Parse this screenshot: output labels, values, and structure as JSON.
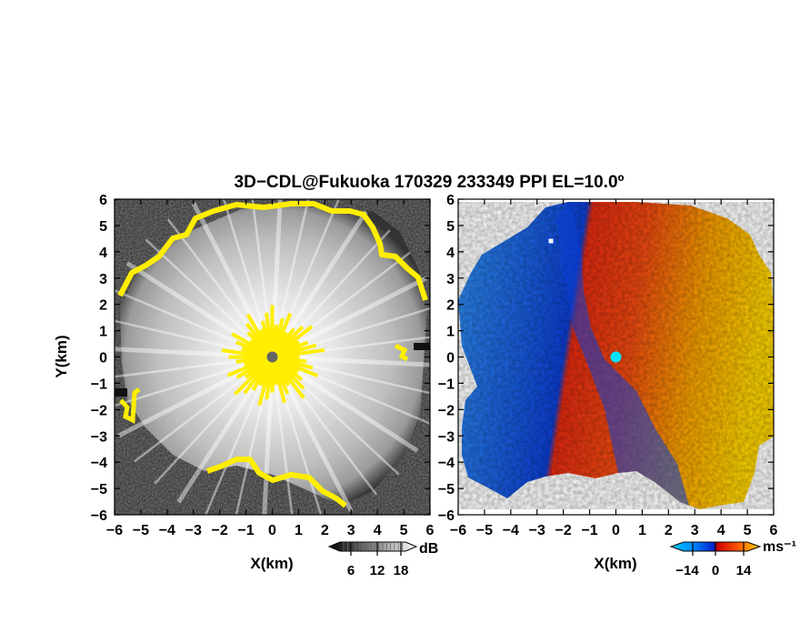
{
  "title": "3D−CDL@Fukuoka 170329 233349 PPI EL=10.0º",
  "chart_data": [
    {
      "type": "heatmap",
      "panel": "left",
      "field": "signal-to-noise",
      "xlabel": "X(km)",
      "ylabel": "Y(km)",
      "xlim": [
        -6,
        6
      ],
      "ylim": [
        -6,
        6
      ],
      "x_ticks": [
        "−6",
        "−5",
        "−4",
        "−3",
        "−2",
        "−1",
        "0",
        "1",
        "2",
        "3",
        "4",
        "5",
        "6"
      ],
      "y_ticks": [
        "−6",
        "−5",
        "−4",
        "−3",
        "−2",
        "−1",
        "0",
        "1",
        "2",
        "3",
        "4",
        "5",
        "6"
      ],
      "colorbar": {
        "ticks": [
          "6",
          "12",
          "18"
        ],
        "unit": "dB",
        "colormap": "grayscale",
        "colors": [
          "#000000",
          "#ffffff"
        ]
      },
      "overlay_color": "#ffee00",
      "radar_site": [
        0,
        0
      ],
      "site_color": "#666666"
    },
    {
      "type": "heatmap",
      "panel": "right",
      "field": "doppler velocity",
      "xlabel": "X(km)",
      "ylabel": "",
      "xlim": [
        -6,
        6
      ],
      "ylim": [
        -6,
        6
      ],
      "x_ticks": [
        "−6",
        "−5",
        "−4",
        "−3",
        "−2",
        "−1",
        "0",
        "1",
        "2",
        "3",
        "4",
        "5",
        "6"
      ],
      "y_ticks": [
        "−6",
        "−5",
        "−4",
        "−3",
        "−2",
        "−1",
        "0",
        "1",
        "2",
        "3",
        "4",
        "5",
        "6"
      ],
      "colorbar": {
        "ticks": [
          "−14",
          "0",
          "14"
        ],
        "unit": "ms⁻¹",
        "colormap": "blue-white-red",
        "colors": [
          "#0033cc",
          "#00aaff",
          "#ff2200",
          "#ffcc00"
        ]
      },
      "radar_site": [
        0,
        0
      ],
      "site_color": "#00e5ff"
    }
  ]
}
